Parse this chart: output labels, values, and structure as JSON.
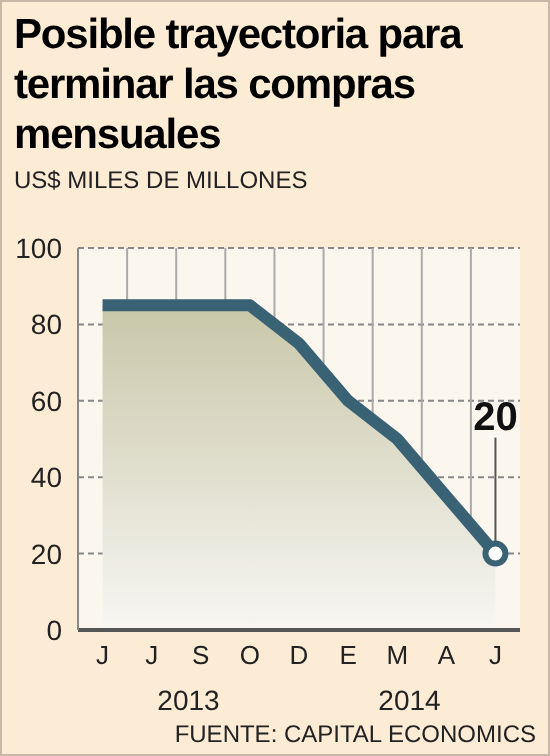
{
  "chart_data": {
    "type": "area",
    "title": "Posible trayectoria para terminar las compras mensuales",
    "subtitle": "US$ MILES DE MILLONES",
    "categories": [
      "J",
      "J",
      "S",
      "O",
      "D",
      "E",
      "M",
      "A",
      "J"
    ],
    "series": [
      {
        "color": "#3a6275",
        "values": [
          85,
          85,
          85,
          85,
          75,
          60,
          50,
          35,
          20
        ],
        "value_labels": [
          null,
          null,
          null,
          null,
          null,
          null,
          null,
          null,
          "20"
        ]
      }
    ],
    "ylim": [
      0,
      100
    ],
    "yticks": [
      0,
      20,
      40,
      60,
      80,
      100
    ],
    "grid": true,
    "annotations": [
      "2013",
      "2014",
      "FUENTE: CAPITAL ECONOMICS"
    ]
  }
}
